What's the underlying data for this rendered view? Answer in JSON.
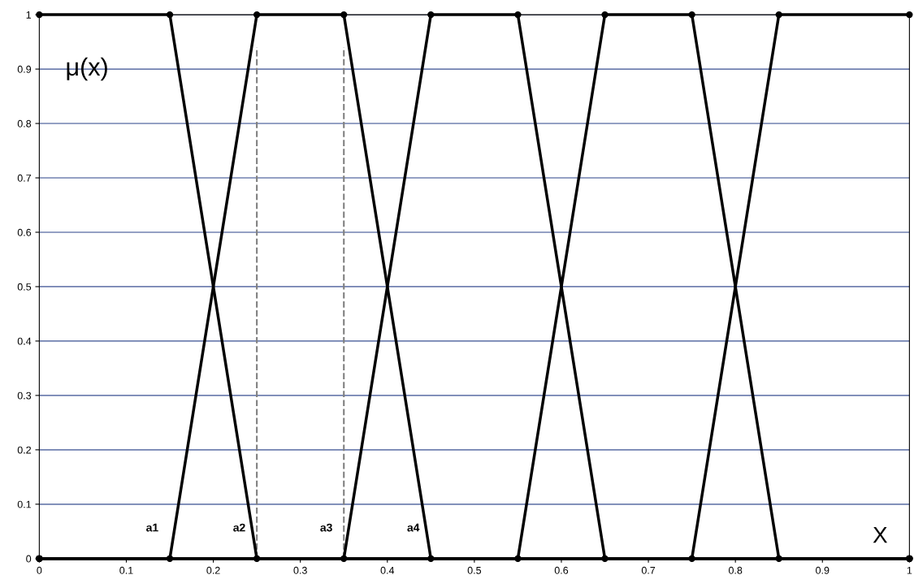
{
  "chart_data": {
    "type": "line",
    "xlabel": "X",
    "ylabel": "μ(x)",
    "series": [
      {
        "color": "#000000",
        "x": [
          0,
          0.15,
          0.25,
          1
        ],
        "values": [
          1,
          1,
          0,
          0
        ]
      },
      {
        "color": "#000000",
        "x": [
          0,
          0.15,
          0.25,
          0.35,
          0.45,
          1
        ],
        "values": [
          0,
          0,
          1,
          1,
          0,
          0
        ]
      },
      {
        "color": "#000000",
        "x": [
          0,
          0.35,
          0.45,
          0.55,
          0.65,
          1
        ],
        "values": [
          0,
          0,
          1,
          1,
          0,
          0
        ]
      },
      {
        "color": "#000000",
        "x": [
          0,
          0.55,
          0.65,
          0.75,
          0.85,
          1
        ],
        "values": [
          0,
          0,
          1,
          1,
          0,
          0
        ]
      },
      {
        "color": "#000000",
        "x": [
          0,
          0.75,
          0.85,
          1
        ],
        "values": [
          0,
          0,
          1,
          1
        ]
      }
    ],
    "xlim": [
      0,
      1
    ],
    "ylim": [
      0,
      1
    ],
    "xticks": [
      0,
      0.1,
      0.2,
      0.3,
      0.4,
      0.5,
      0.6,
      0.7,
      0.8,
      0.9,
      1
    ],
    "yticks": [
      0,
      0.1,
      0.2,
      0.3,
      0.4,
      0.5,
      0.6,
      0.7,
      0.8,
      0.9,
      1
    ],
    "grid": "y",
    "marker": "circle",
    "line_style": "solid",
    "ref_lines": [
      {
        "axis": "x",
        "value": 0.25,
        "color": "#808080",
        "line_style": "dashed"
      },
      {
        "axis": "x",
        "value": 0.35,
        "color": "#808080",
        "line_style": "dashed"
      }
    ],
    "annotations": [
      {
        "text": "a1",
        "x": 0.15,
        "y": 0
      },
      {
        "text": "a2",
        "x": 0.25,
        "y": 0
      },
      {
        "text": "a3",
        "x": 0.35,
        "y": 0
      },
      {
        "text": "a4",
        "x": 0.45,
        "y": 0
      }
    ]
  }
}
